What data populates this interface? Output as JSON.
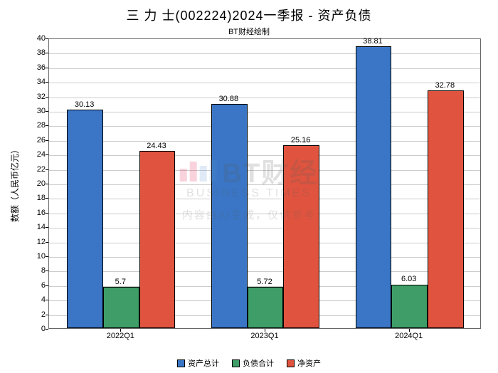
{
  "title": "三 力 士(002224)2024一季报 - 资产负债",
  "subtitle": "BT财经绘制",
  "ylabel": "数额（人民币亿元）",
  "chart": {
    "type": "bar",
    "categories": [
      "2022Q1",
      "2023Q1",
      "2024Q1"
    ],
    "series": [
      {
        "name": "资产总计",
        "color": "#3a76c5",
        "values": [
          30.13,
          30.88,
          38.81
        ]
      },
      {
        "name": "负债合计",
        "color": "#3f9e68",
        "values": [
          5.7,
          5.72,
          6.03
        ]
      },
      {
        "name": "净资产",
        "color": "#e0543f",
        "values": [
          24.43,
          25.16,
          32.78
        ]
      }
    ],
    "ylim": [
      0,
      40
    ],
    "ytick_step": 2,
    "grid_color": "#cccccc",
    "background_color": "#ffffff",
    "bar_group_width": 0.75,
    "title_fontsize": 18,
    "label_fontsize": 12,
    "tick_fontsize": 11
  },
  "watermark": {
    "brand": "BT财经",
    "brand_en": "BUSINESS TIMES",
    "note": "内容由AI生成，仅供参考"
  }
}
